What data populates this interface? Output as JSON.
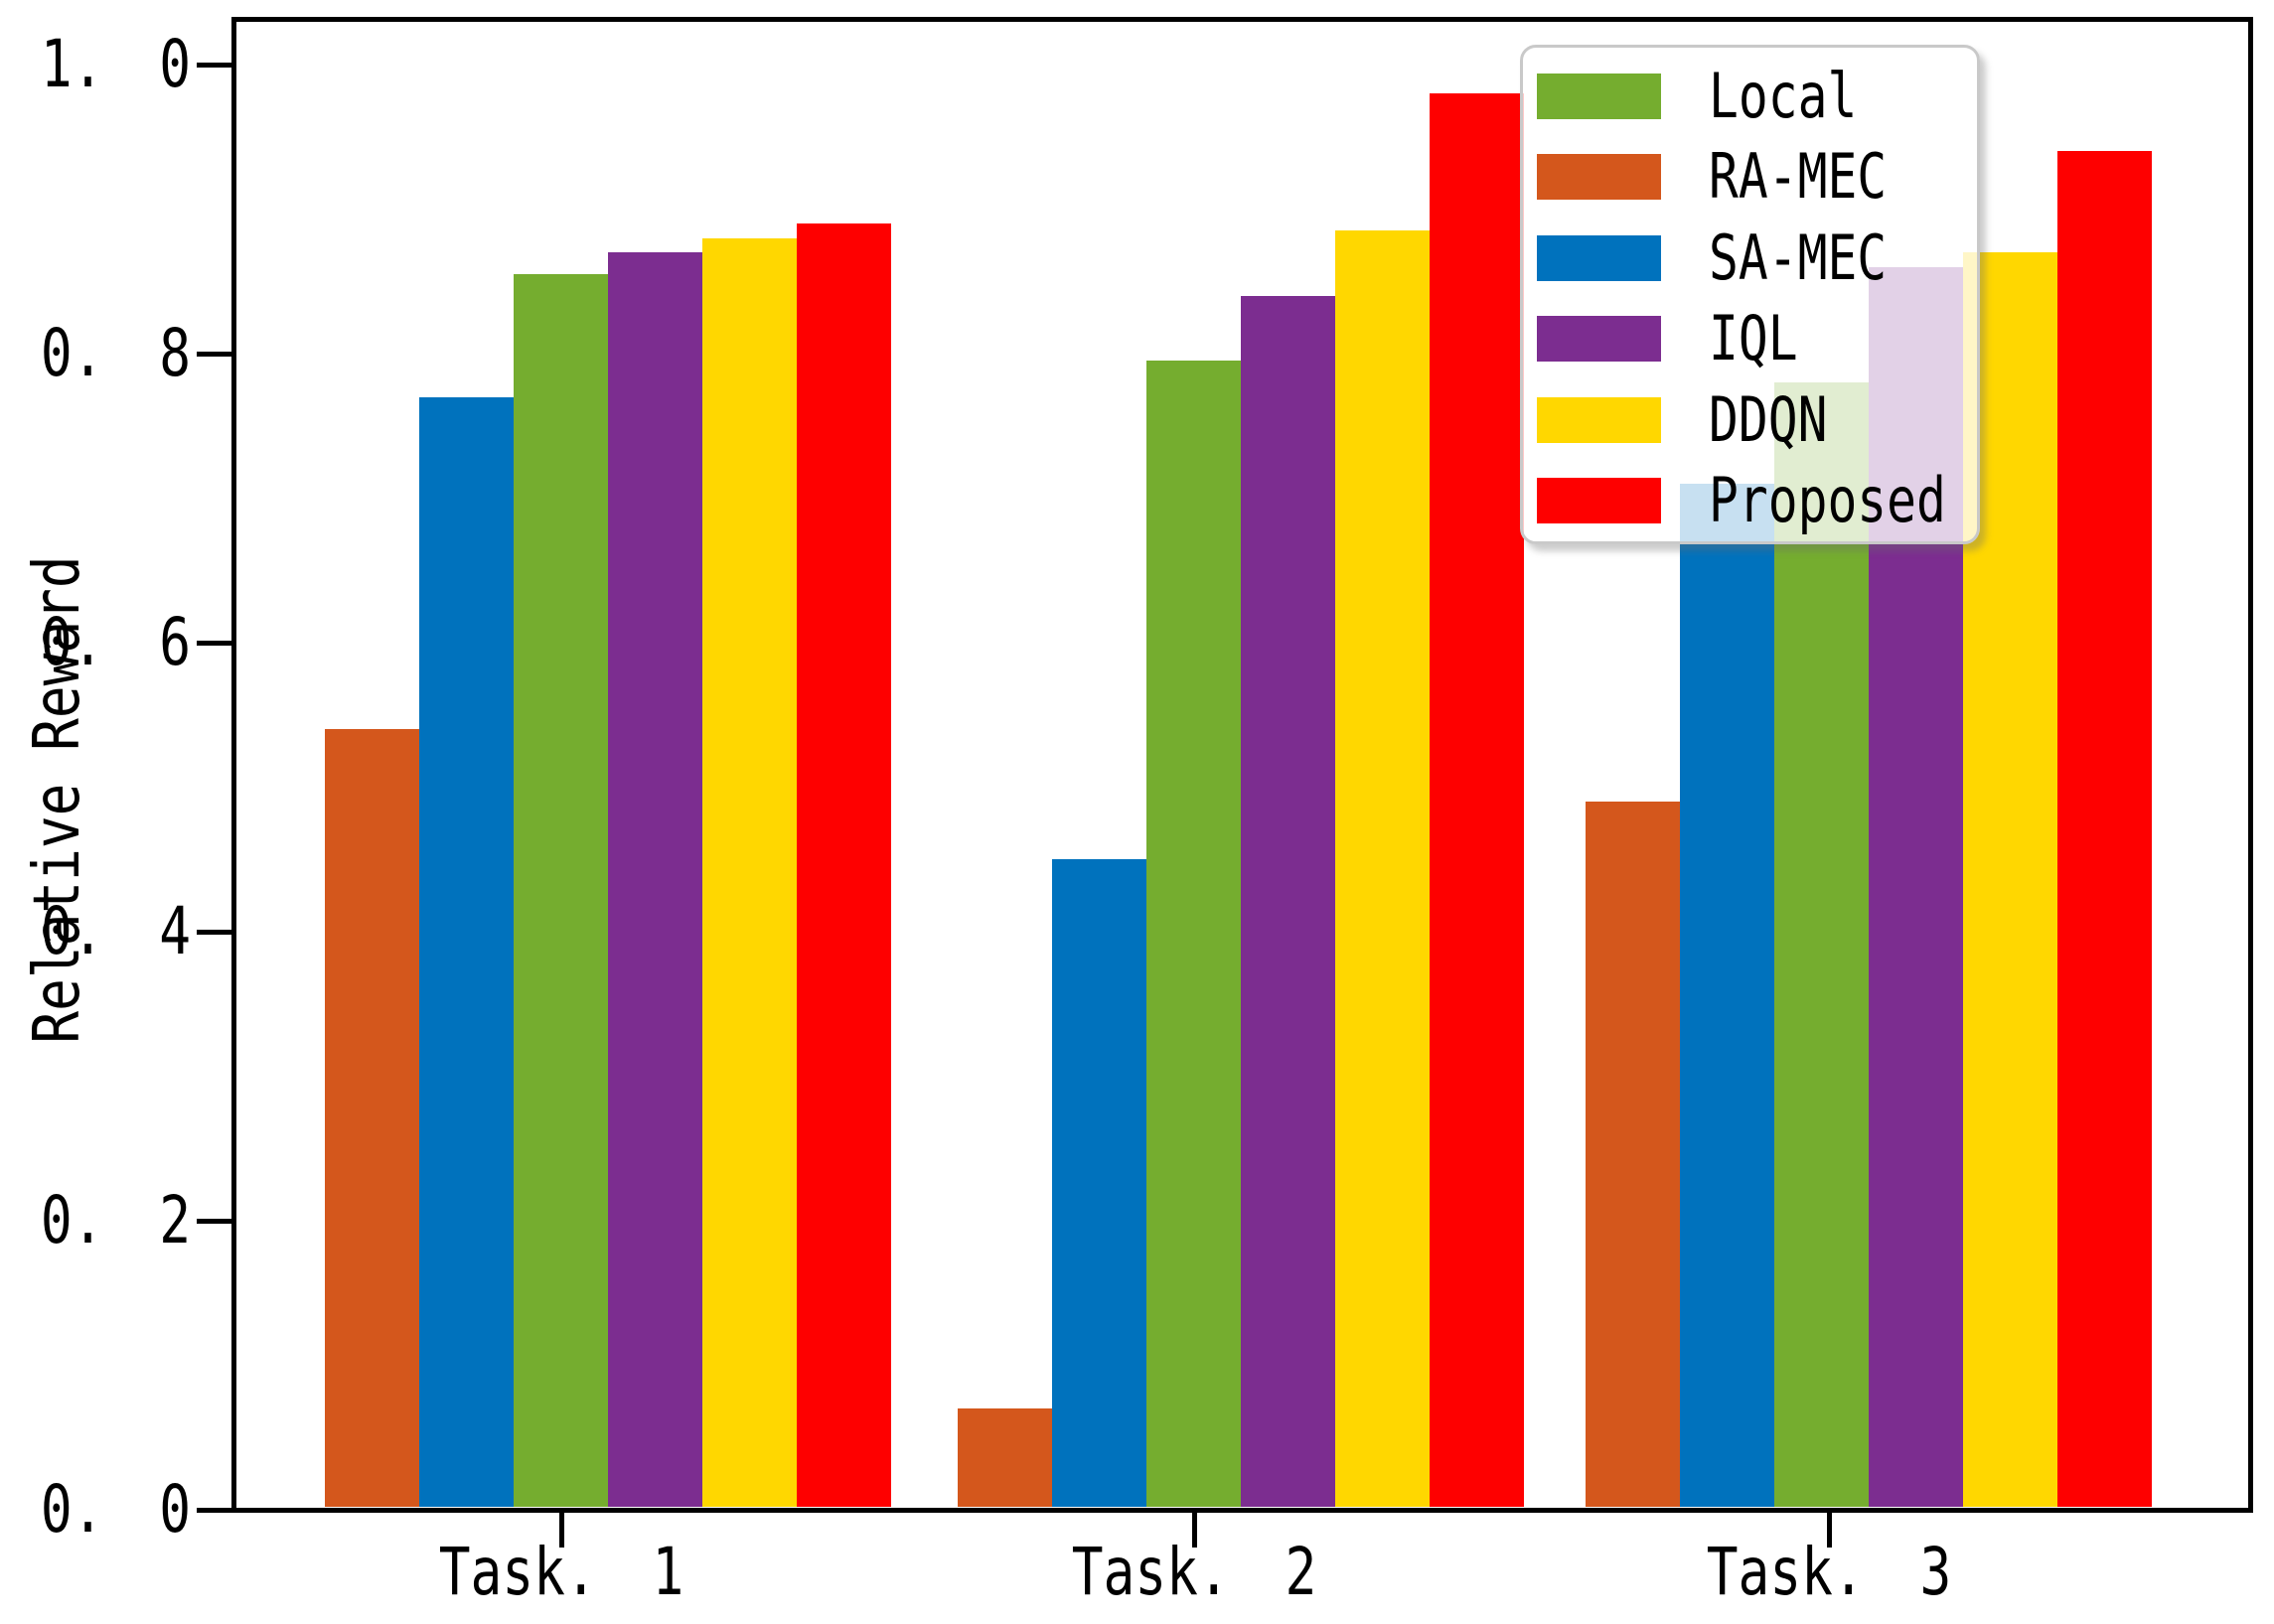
{
  "chart_data": {
    "type": "bar",
    "title": "",
    "xlabel": "",
    "ylabel": "Relative Reward",
    "ylim": [
      0,
      1.03
    ],
    "grid": false,
    "legend_position": "upper right",
    "categories": [
      "Task. 1",
      "Task. 2",
      "Task. 3"
    ],
    "bar_order": [
      "RA-MEC",
      "SA-MEC",
      "Local",
      "IQL",
      "DDQN",
      "Proposed"
    ],
    "series": [
      {
        "name": "Local",
        "color": "#75ad2f",
        "values": [
          0.855,
          0.795,
          0.78
        ]
      },
      {
        "name": "RA-MEC",
        "color": "#d4571c",
        "values": [
          0.54,
          0.07,
          0.49
        ]
      },
      {
        "name": "SA-MEC",
        "color": "#0072bd",
        "values": [
          0.77,
          0.45,
          0.71
        ]
      },
      {
        "name": "IQL",
        "color": "#7c2d90",
        "values": [
          0.87,
          0.84,
          0.86
        ]
      },
      {
        "name": "DDQN",
        "color": "#ffd700",
        "values": [
          0.88,
          0.885,
          0.87
        ]
      },
      {
        "name": "Proposed",
        "color": "#fe0000",
        "values": [
          0.89,
          0.98,
          0.94
        ]
      }
    ],
    "yticks": [
      {
        "value": 0.0,
        "label": "0. 0"
      },
      {
        "value": 0.2,
        "label": "0. 2"
      },
      {
        "value": 0.4,
        "label": "0. 4"
      },
      {
        "value": 0.6,
        "label": "0. 6"
      },
      {
        "value": 0.8,
        "label": "0. 8"
      },
      {
        "value": 1.0,
        "label": "1. 0"
      }
    ]
  }
}
